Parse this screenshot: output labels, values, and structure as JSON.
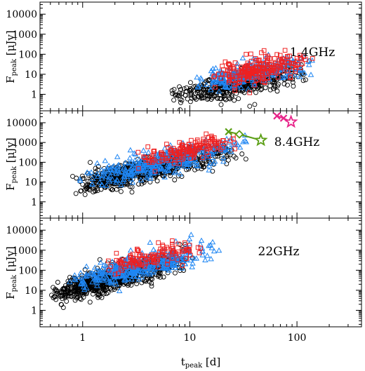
{
  "figure": {
    "xlabel_main": "t",
    "xlabel_sub": "peak",
    "xlabel_unit": " [d]",
    "ylabel_main": "F",
    "ylabel_sub": "peak",
    "ylabel_unit": " [μJy]"
  },
  "colors": {
    "black": "#000000",
    "blue": "#1f86f3",
    "red": "#ee2020",
    "green": "#5a9e14",
    "magenta": "#e8258a"
  },
  "chart_data": [
    {
      "type": "scatter",
      "panel_label": "1.4GHz",
      "xscale": "log",
      "yscale": "log",
      "xlim": [
        0.4,
        400
      ],
      "ylim": [
        0.15,
        40000
      ],
      "x_ticks": [
        1,
        10,
        100
      ],
      "x_tick_labels": [
        "",
        "",
        ""
      ],
      "y_ticks": [
        1,
        10,
        100,
        1000,
        10000
      ],
      "y_tick_labels": [
        "1",
        "10",
        "100",
        "1000",
        "10000"
      ],
      "clouds": [
        {
          "marker": "circle",
          "color": "black",
          "n": 420,
          "x_range": [
            6,
            140
          ],
          "x_peak": 25,
          "y_at_x10": 1.2,
          "slope": 0.9,
          "scatter_dex": 0.28
        },
        {
          "marker": "triangle",
          "color": "blue",
          "n": 280,
          "x_range": [
            10,
            150
          ],
          "x_peak": 35,
          "y_at_x10": 3.0,
          "slope": 1.0,
          "scatter_dex": 0.3
        },
        {
          "marker": "square",
          "color": "red",
          "n": 220,
          "x_range": [
            15,
            150
          ],
          "x_peak": 40,
          "y_at_x10": 4.0,
          "slope": 1.0,
          "scatter_dex": 0.28
        }
      ],
      "tracks": []
    },
    {
      "type": "scatter",
      "panel_label": "8.4GHz",
      "xscale": "log",
      "yscale": "log",
      "xlim": [
        0.4,
        400
      ],
      "ylim": [
        0.15,
        40000
      ],
      "x_ticks": [
        1,
        10,
        100
      ],
      "x_tick_labels": [
        "",
        "",
        ""
      ],
      "y_ticks": [
        1,
        10,
        100,
        1000,
        10000
      ],
      "y_tick_labels": [
        "1",
        "10",
        "100",
        "1000",
        "10000"
      ],
      "clouds": [
        {
          "marker": "circle",
          "color": "black",
          "n": 650,
          "x_range": [
            0.75,
            35
          ],
          "x_peak": 2.2,
          "y_at_x10": 120,
          "slope": 1.2,
          "scatter_dex": 0.3
        },
        {
          "marker": "triangle",
          "color": "blue",
          "n": 380,
          "x_range": [
            0.9,
            40
          ],
          "x_peak": 5,
          "y_at_x10": 220,
          "slope": 1.25,
          "scatter_dex": 0.3
        },
        {
          "marker": "square",
          "color": "red",
          "n": 150,
          "x_range": [
            3,
            30
          ],
          "x_peak": 10,
          "y_at_x10": 450,
          "slope": 1.2,
          "scatter_dex": 0.25
        }
      ],
      "tracks": [
        {
          "color": "green",
          "points": [
            [
              23,
              3500
            ],
            [
              29,
              2600
            ],
            [
              46,
              1300
            ]
          ],
          "start_marker": "x",
          "mid_marker": "diamond",
          "end_marker": "star"
        },
        {
          "color": "magenta",
          "points": [
            [
              65,
              22000
            ],
            [
              75,
              17000
            ],
            [
              88,
              11000
            ]
          ],
          "start_marker": "x",
          "mid_marker": "x",
          "end_marker": "star"
        }
      ]
    },
    {
      "type": "scatter",
      "panel_label": "22GHz",
      "xscale": "log",
      "yscale": "log",
      "xlim": [
        0.4,
        400
      ],
      "ylim": [
        0.15,
        40000
      ],
      "x_ticks": [
        1,
        10,
        100
      ],
      "x_tick_labels": [
        "1",
        "10",
        "100"
      ],
      "y_ticks": [
        1,
        10,
        100,
        1000,
        10000
      ],
      "y_tick_labels": [
        "1",
        "10",
        "100",
        "1000",
        "10000"
      ],
      "clouds": [
        {
          "marker": "circle",
          "color": "black",
          "n": 700,
          "x_range": [
            0.45,
            12
          ],
          "x_peak": 1.1,
          "y_at_x10": 380,
          "slope": 1.4,
          "scatter_dex": 0.3
        },
        {
          "marker": "triangle",
          "color": "blue",
          "n": 380,
          "x_range": [
            0.7,
            20
          ],
          "x_peak": 2.8,
          "y_at_x10": 600,
          "slope": 1.3,
          "scatter_dex": 0.3
        },
        {
          "marker": "square",
          "color": "red",
          "n": 120,
          "x_range": [
            1.5,
            16
          ],
          "x_peak": 5,
          "y_at_x10": 1200,
          "slope": 1.2,
          "scatter_dex": 0.25
        }
      ],
      "tracks": []
    }
  ]
}
